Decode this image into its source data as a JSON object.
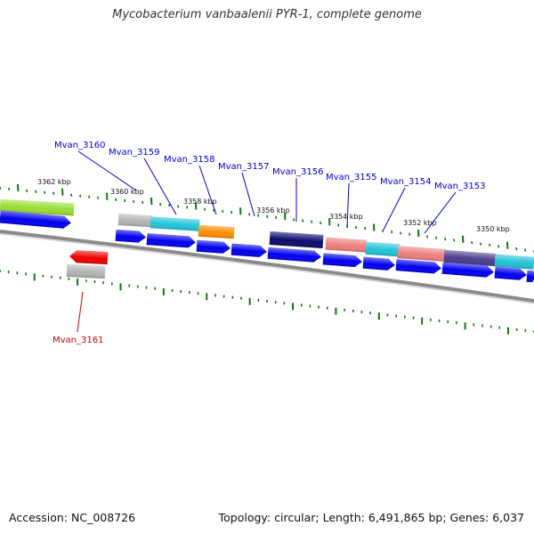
{
  "title": "Mycobacterium vanbaalenii PYR-1, complete genome",
  "accession": "Accession: NC_008726",
  "summary": "Topology: circular; Length: 6,491,865 bp; Genes: 6,037",
  "ruler_labels": [
    "3362 kbp",
    "3360 kbp",
    "3358 kbp",
    "3356 kbp",
    "3354 kbp",
    "3352 kbp",
    "3350 kbp"
  ],
  "genes": [
    {
      "name": "Mvan_3160",
      "color": "#0000cc"
    },
    {
      "name": "Mvan_3159",
      "color": "#0000cc"
    },
    {
      "name": "Mvan_3158",
      "color": "#0000cc"
    },
    {
      "name": "Mvan_3157",
      "color": "#0000cc"
    },
    {
      "name": "Mvan_3156",
      "color": "#0000cc"
    },
    {
      "name": "Mvan_3155",
      "color": "#0000cc"
    },
    {
      "name": "Mvan_3154",
      "color": "#0000cc"
    },
    {
      "name": "Mvan_3153",
      "color": "#0000cc"
    },
    {
      "name": "Mvan_3161",
      "color": "#cc0000"
    }
  ],
  "colors": {
    "forward_gene": "#0000ee",
    "reverse_gene": "#ee0000",
    "tick": "#117711",
    "backbone": "#777777",
    "feature_lime": "#99dd33",
    "feature_gray": "#b4b4b4",
    "feature_cyan": "#22c4d8",
    "feature_orange": "#ff8c00",
    "feature_navy": "#0a0a6e",
    "feature_salmon": "#ee7f7f",
    "feature_purple": "#4a3d8c"
  }
}
